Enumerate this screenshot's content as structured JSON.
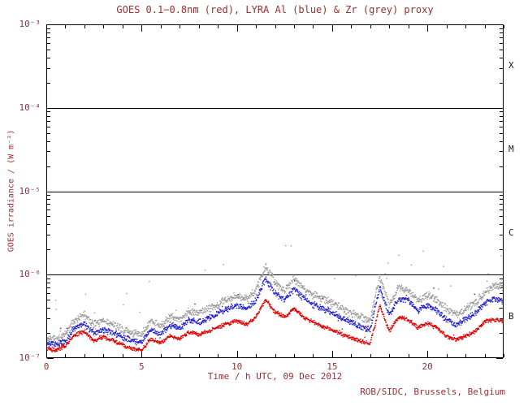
{
  "footer": "ROB/SIDC, Brussels, Belgium",
  "colors": {
    "text": "#9b2f2f",
    "frame": "#000000",
    "boundary_line": "#000000",
    "flare_letter": "#1a1a1a",
    "background": "#ffffff"
  },
  "chart_data": {
    "type": "scatter",
    "title": "GOES 0.1−0.8nm (red), LYRA Al (blue) & Zr (grey) proxy",
    "xlabel": "Time / h UTC, 09 Dec 2012",
    "ylabel": "GOES irradiance / (W m⁻²)",
    "x_range": [
      0,
      24
    ],
    "x_minor_step": 1,
    "x_ticks": [
      {
        "value": 0,
        "label": "0"
      },
      {
        "value": 5,
        "label": "5"
      },
      {
        "value": 10,
        "label": "10"
      },
      {
        "value": 15,
        "label": "15"
      },
      {
        "value": 20,
        "label": "20"
      }
    ],
    "y_log_range": [
      -7,
      -3
    ],
    "y_ticks": [
      {
        "log": -3,
        "label": "10⁻³"
      },
      {
        "log": -4,
        "label": "10⁻⁴"
      },
      {
        "log": -5,
        "label": "10⁻⁵"
      },
      {
        "log": -6,
        "label": "10⁻⁶"
      },
      {
        "log": -7,
        "label": "10⁻⁷"
      }
    ],
    "class_boundary_lines_log": [
      -4,
      -5,
      -6
    ],
    "flare_classes": [
      {
        "label": "X",
        "log_y": -3.5
      },
      {
        "label": "M",
        "log_y": -4.5
      },
      {
        "label": "C",
        "log_y": -5.5
      },
      {
        "label": "B",
        "log_y": -6.5
      }
    ],
    "grid": false,
    "legend_position": "in-title",
    "sample_x_start": 0,
    "sample_x_step": 0.5,
    "series": [
      {
        "name": "GOES 0.1-0.8nm",
        "color": "#e00000",
        "noise_log": 0.03,
        "outlier_rate": 0.004,
        "outlier_mag": 0.25,
        "y": [
          1.3e-07,
          1.25e-07,
          1.4e-07,
          1.9e-07,
          2.1e-07,
          1.6e-07,
          1.8e-07,
          1.6e-07,
          1.45e-07,
          1.3e-07,
          1.25e-07,
          1.7e-07,
          1.5e-07,
          1.85e-07,
          1.7e-07,
          2.05e-07,
          1.9e-07,
          2.1e-07,
          2.35e-07,
          2.6e-07,
          2.8e-07,
          2.55e-07,
          3.1e-07,
          5e-07,
          3.6e-07,
          3.1e-07,
          3.9e-07,
          3.1e-07,
          2.7e-07,
          2.4e-07,
          2.2e-07,
          1.95e-07,
          1.75e-07,
          1.6e-07,
          1.5e-07,
          4.2e-07,
          2.1e-07,
          3.1e-07,
          2.9e-07,
          2.3e-07,
          2.6e-07,
          2.3e-07,
          1.85e-07,
          1.65e-07,
          1.85e-07,
          2.1e-07,
          2.7e-07,
          2.9e-07,
          2.7e-07
        ]
      },
      {
        "name": "LYRA Al proxy",
        "color": "#2020cc",
        "noise_log": 0.045,
        "outlier_rate": 0.006,
        "outlier_mag": 0.3,
        "y": [
          1.5e-07,
          1.45e-07,
          1.6e-07,
          2.3e-07,
          2.6e-07,
          2e-07,
          2.2e-07,
          2e-07,
          1.8e-07,
          1.6e-07,
          1.55e-07,
          2.2e-07,
          1.9e-07,
          2.5e-07,
          2.3e-07,
          2.9e-07,
          2.7e-07,
          3e-07,
          3.4e-07,
          3.9e-07,
          4.3e-07,
          3.9e-07,
          4.9e-07,
          9e-07,
          6e-07,
          5e-07,
          6.7e-07,
          5.2e-07,
          4.4e-07,
          3.9e-07,
          3.5e-07,
          3e-07,
          2.7e-07,
          2.4e-07,
          2.2e-07,
          7e-07,
          3.3e-07,
          5.2e-07,
          4.9e-07,
          3.7e-07,
          4.3e-07,
          3.7e-07,
          2.9e-07,
          2.5e-07,
          2.9e-07,
          3.4e-07,
          4.5e-07,
          5.2e-07,
          4.8e-07
        ]
      },
      {
        "name": "LYRA Zr proxy",
        "color": "#9a9a9a",
        "noise_log": 0.055,
        "outlier_rate": 0.025,
        "outlier_mag": 0.55,
        "y": [
          1.7e-07,
          1.65e-07,
          1.9e-07,
          2.9e-07,
          3.3e-07,
          2.5e-07,
          2.8e-07,
          2.5e-07,
          2.2e-07,
          2e-07,
          1.9e-07,
          2.8e-07,
          2.4e-07,
          3.2e-07,
          2.9e-07,
          3.7e-07,
          3.5e-07,
          3.9e-07,
          4.4e-07,
          5.1e-07,
          5.7e-07,
          5.1e-07,
          6.5e-07,
          1.25e-06,
          8e-07,
          6.6e-07,
          9e-07,
          7e-07,
          5.8e-07,
          5.1e-07,
          4.6e-07,
          4e-07,
          3.5e-07,
          3.1e-07,
          2.9e-07,
          9.5e-07,
          4.4e-07,
          7e-07,
          6.5e-07,
          4.9e-07,
          5.7e-07,
          5e-07,
          3.9e-07,
          3.3e-07,
          3.9e-07,
          4.5e-07,
          6e-07,
          7.5e-07,
          7e-07
        ]
      }
    ]
  }
}
